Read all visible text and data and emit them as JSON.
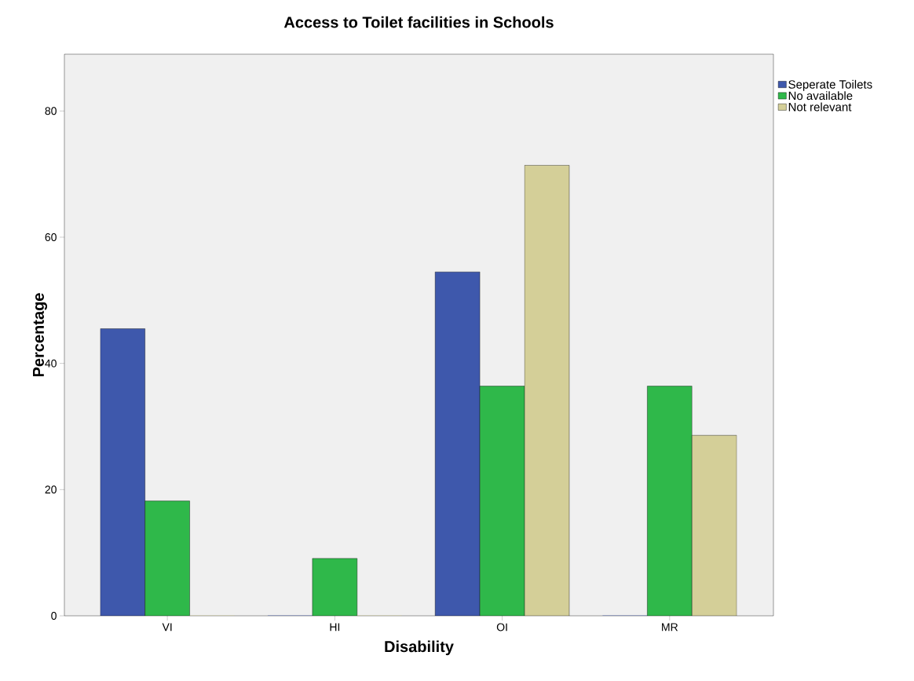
{
  "chart_data": {
    "type": "bar",
    "title": "Access to Toilet facilities in Schools",
    "xlabel": "Disability",
    "ylabel": "Percentage",
    "categories": [
      "VI",
      "HI",
      "OI",
      "MR"
    ],
    "series": [
      {
        "name": "Seperate Toilets",
        "color": "#3e58ac",
        "values": [
          45.5,
          0,
          54.5,
          0
        ]
      },
      {
        "name": "No available",
        "color": "#2fb84a",
        "values": [
          18.2,
          9.1,
          36.4,
          36.4
        ]
      },
      {
        "name": "Not relevant",
        "color": "#d4cf98",
        "values": [
          0,
          0,
          71.4,
          28.6
        ]
      }
    ],
    "ylim": [
      0,
      89
    ],
    "yticks": [
      0,
      20,
      40,
      60,
      80
    ],
    "legend": "top right"
  }
}
